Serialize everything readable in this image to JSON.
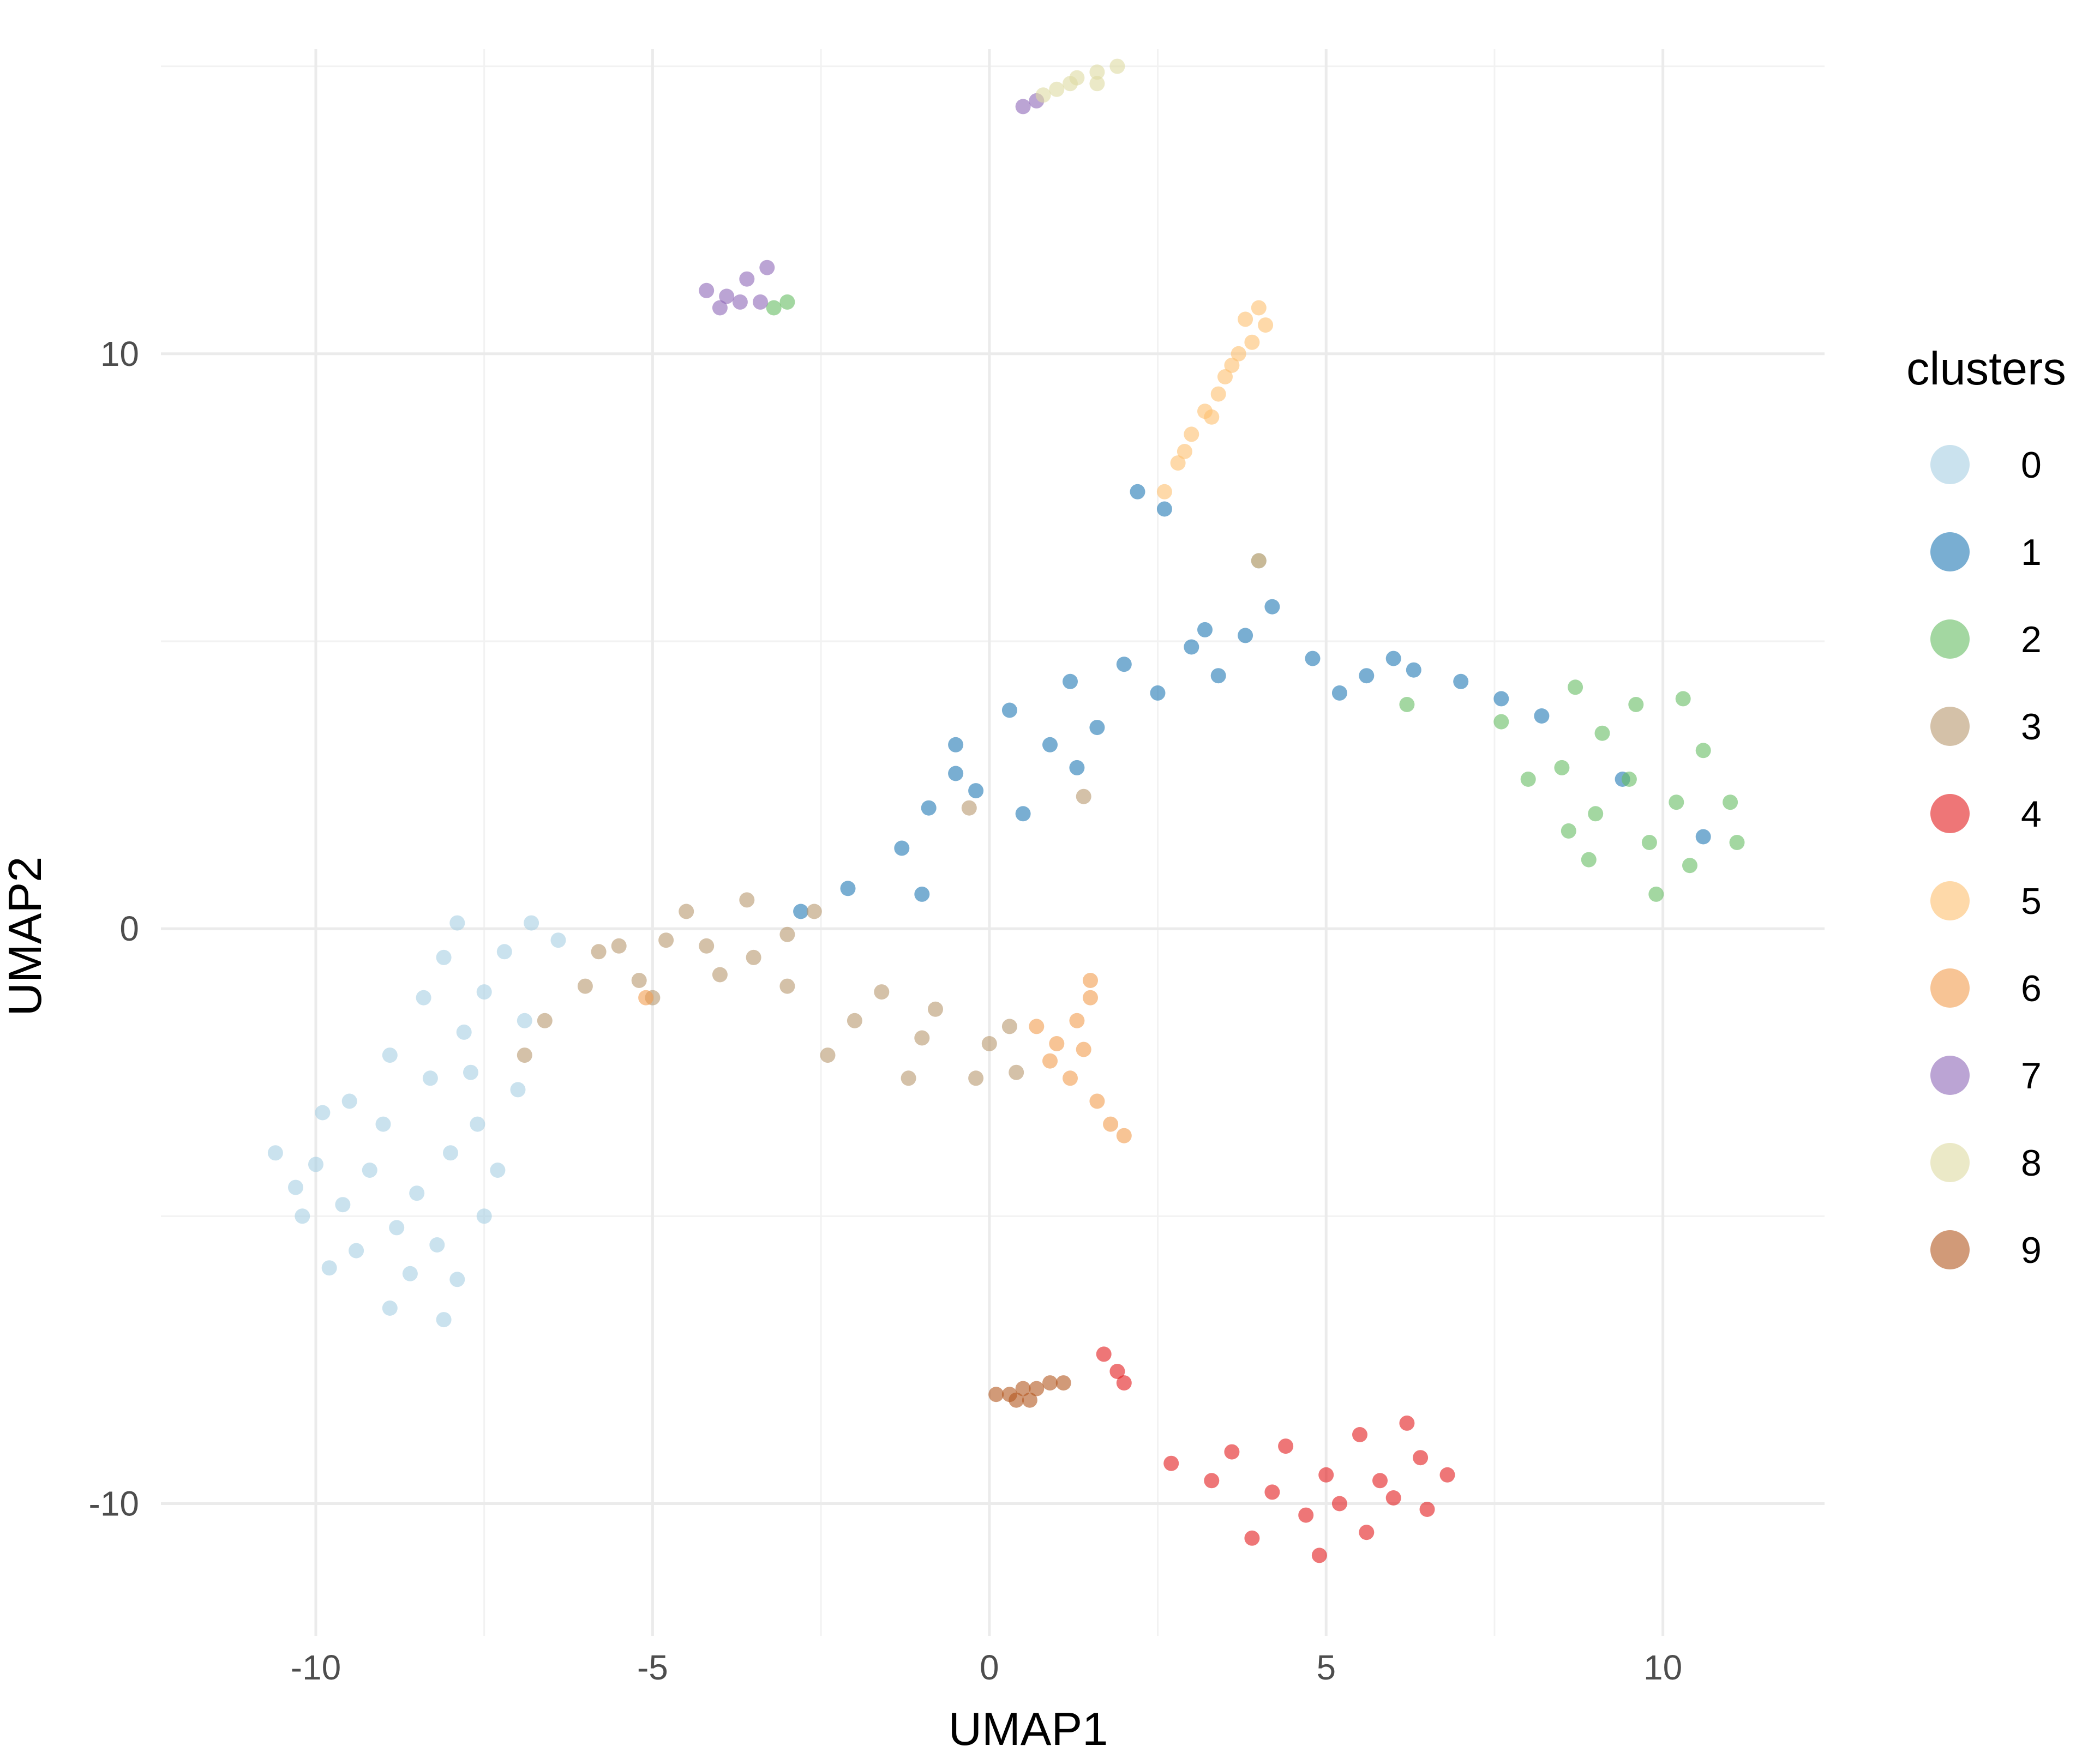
{
  "chart_data": {
    "type": "scatter",
    "title": "",
    "xlabel": "UMAP1",
    "ylabel": "UMAP2",
    "xlim": [
      -12.3,
      12.4
    ],
    "ylim": [
      -12.3,
      15.3
    ],
    "x_ticks": [
      -10,
      -5,
      0,
      5,
      10
    ],
    "x_tick_labels": [
      "-10",
      "-5",
      "0",
      "5",
      "10"
    ],
    "y_ticks": [
      -10,
      0,
      10
    ],
    "y_tick_labels": [
      "-10",
      "0",
      "10"
    ],
    "grid": true,
    "point_opacity": 0.6,
    "legend": {
      "title": "clusters",
      "position": "right",
      "entries": [
        "0",
        "1",
        "2",
        "3",
        "4",
        "5",
        "6",
        "7",
        "8",
        "9"
      ]
    },
    "series": [
      {
        "label": "0",
        "color": "#A6CEE3",
        "points": [
          [
            -9.2,
            -4.2
          ],
          [
            -8.5,
            -4.6
          ],
          [
            -8.0,
            -3.9
          ],
          [
            -9.0,
            -3.4
          ],
          [
            -8.8,
            -5.2
          ],
          [
            -9.6,
            -4.8
          ],
          [
            -8.2,
            -5.5
          ],
          [
            -8.6,
            -6.0
          ],
          [
            -7.6,
            -3.4
          ],
          [
            -8.3,
            -2.6
          ],
          [
            -7.8,
            -1.8
          ],
          [
            -7.5,
            -1.1
          ],
          [
            -7.2,
            -0.4
          ],
          [
            -6.8,
            0.1
          ],
          [
            -6.4,
            -0.2
          ],
          [
            -7.7,
            -2.5
          ],
          [
            -9.4,
            -5.6
          ],
          [
            -10.0,
            -4.1
          ],
          [
            -10.6,
            -3.9
          ],
          [
            -10.2,
            -5.0
          ],
          [
            -9.8,
            -5.9
          ],
          [
            -8.9,
            -6.6
          ],
          [
            -8.1,
            -6.8
          ],
          [
            -7.9,
            -6.1
          ],
          [
            -7.5,
            -5.0
          ],
          [
            -7.3,
            -4.2
          ],
          [
            -7.0,
            -2.8
          ],
          [
            -6.9,
            -1.6
          ],
          [
            -8.9,
            -2.2
          ],
          [
            -9.5,
            -3.0
          ],
          [
            -8.4,
            -1.2
          ],
          [
            -8.1,
            -0.5
          ],
          [
            -7.9,
            0.1
          ],
          [
            -9.9,
            -3.2
          ],
          [
            -10.3,
            -4.5
          ]
        ]
      },
      {
        "label": "1",
        "color": "#1F78B4",
        "points": [
          [
            -0.5,
            3.2
          ],
          [
            0.3,
            3.8
          ],
          [
            1.2,
            4.3
          ],
          [
            2.0,
            4.6
          ],
          [
            3.0,
            4.9
          ],
          [
            3.8,
            5.1
          ],
          [
            4.2,
            5.6
          ],
          [
            4.8,
            4.7
          ],
          [
            5.6,
            4.4
          ],
          [
            6.3,
            4.5
          ],
          [
            7.0,
            4.3
          ],
          [
            7.6,
            4.0
          ],
          [
            -0.9,
            2.1
          ],
          [
            -1.3,
            1.4
          ],
          [
            -0.2,
            2.4
          ],
          [
            0.5,
            2.0
          ],
          [
            1.3,
            2.8
          ],
          [
            1.6,
            3.5
          ],
          [
            2.5,
            4.1
          ],
          [
            3.4,
            4.4
          ],
          [
            4.0,
            6.4
          ],
          [
            2.6,
            7.3
          ],
          [
            2.2,
            7.6
          ],
          [
            -0.5,
            2.7
          ],
          [
            0.9,
            3.2
          ],
          [
            3.2,
            5.2
          ],
          [
            5.2,
            4.1
          ],
          [
            6.0,
            4.7
          ],
          [
            -1.0,
            0.6
          ],
          [
            -2.1,
            0.7
          ],
          [
            -2.8,
            0.3
          ],
          [
            8.2,
            3.7
          ],
          [
            9.4,
            2.6
          ],
          [
            10.6,
            1.6
          ]
        ]
      },
      {
        "label": "2",
        "color": "#66BD63",
        "points": [
          [
            9.5,
            2.6
          ],
          [
            9.0,
            2.0
          ],
          [
            10.2,
            2.2
          ],
          [
            10.6,
            3.1
          ],
          [
            9.1,
            3.4
          ],
          [
            8.5,
            2.8
          ],
          [
            9.8,
            1.5
          ],
          [
            10.4,
            1.1
          ],
          [
            8.9,
            1.2
          ],
          [
            11.0,
            2.2
          ],
          [
            9.6,
            3.9
          ],
          [
            8.7,
            4.2
          ],
          [
            10.3,
            4.0
          ],
          [
            11.1,
            1.5
          ],
          [
            9.9,
            0.6
          ],
          [
            8.6,
            1.7
          ],
          [
            8.0,
            2.6
          ],
          [
            7.6,
            3.6
          ],
          [
            6.2,
            3.9
          ],
          [
            -3.2,
            10.8
          ],
          [
            -3.0,
            10.9
          ]
        ]
      },
      {
        "label": "3",
        "color": "#B8986E",
        "points": [
          [
            -6.0,
            -1.0
          ],
          [
            -5.0,
            -1.2
          ],
          [
            -4.0,
            -0.8
          ],
          [
            -3.0,
            -1.0
          ],
          [
            -2.0,
            -1.6
          ],
          [
            -1.0,
            -1.9
          ],
          [
            0.0,
            -2.0
          ],
          [
            -3.5,
            -0.5
          ],
          [
            -4.8,
            -0.2
          ],
          [
            -5.8,
            -0.4
          ],
          [
            -6.6,
            -1.6
          ],
          [
            -6.9,
            -2.2
          ],
          [
            -2.4,
            -2.2
          ],
          [
            -1.2,
            -2.6
          ],
          [
            -0.2,
            -2.6
          ],
          [
            0.4,
            -2.5
          ],
          [
            -3.0,
            -0.1
          ],
          [
            -4.2,
            -0.3
          ],
          [
            -5.2,
            -0.9
          ],
          [
            -1.6,
            -1.1
          ],
          [
            -0.8,
            -1.4
          ],
          [
            -2.6,
            0.3
          ],
          [
            -3.6,
            0.5
          ],
          [
            -4.5,
            0.3
          ],
          [
            0.3,
            -1.7
          ],
          [
            -0.3,
            2.1
          ],
          [
            1.4,
            2.3
          ],
          [
            -5.5,
            -0.3
          ]
        ]
      },
      {
        "label": "4",
        "color": "#E31A1C",
        "points": [
          [
            4.2,
            -9.8
          ],
          [
            5.0,
            -9.5
          ],
          [
            5.8,
            -9.6
          ],
          [
            6.4,
            -9.2
          ],
          [
            4.7,
            -10.2
          ],
          [
            5.6,
            -10.5
          ],
          [
            3.3,
            -9.6
          ],
          [
            2.7,
            -9.3
          ],
          [
            4.9,
            -10.9
          ],
          [
            3.9,
            -10.6
          ],
          [
            6.5,
            -10.1
          ],
          [
            6.8,
            -9.5
          ],
          [
            5.5,
            -8.8
          ],
          [
            6.2,
            -8.6
          ],
          [
            4.4,
            -9.0
          ],
          [
            3.6,
            -9.1
          ],
          [
            5.2,
            -10.0
          ],
          [
            6.0,
            -9.9
          ],
          [
            1.7,
            -7.4
          ],
          [
            1.9,
            -7.7
          ],
          [
            2.0,
            -7.9
          ]
        ]
      },
      {
        "label": "5",
        "color": "#FDBF6F",
        "points": [
          [
            3.0,
            8.6
          ],
          [
            3.4,
            9.3
          ],
          [
            3.7,
            10.0
          ],
          [
            4.0,
            10.8
          ],
          [
            3.9,
            10.2
          ],
          [
            2.8,
            8.1
          ],
          [
            2.6,
            7.6
          ],
          [
            3.2,
            9.0
          ],
          [
            3.6,
            9.8
          ],
          [
            3.8,
            10.6
          ],
          [
            2.9,
            8.3
          ],
          [
            3.5,
            9.6
          ],
          [
            4.0,
            6.4
          ],
          [
            4.1,
            10.5
          ],
          [
            3.3,
            8.9
          ]
        ]
      },
      {
        "label": "6",
        "color": "#F29D4F",
        "points": [
          [
            1.0,
            -2.0
          ],
          [
            1.4,
            -2.1
          ],
          [
            1.5,
            -1.2
          ],
          [
            0.7,
            -1.7
          ],
          [
            1.2,
            -2.6
          ],
          [
            1.6,
            -3.0
          ],
          [
            1.8,
            -3.4
          ],
          [
            2.0,
            -3.6
          ],
          [
            1.3,
            -1.6
          ],
          [
            0.9,
            -2.3
          ],
          [
            1.5,
            -0.9
          ],
          [
            -5.1,
            -1.2
          ]
        ]
      },
      {
        "label": "7",
        "color": "#8E67B8",
        "points": [
          [
            -4.2,
            11.1
          ],
          [
            -3.9,
            11.0
          ],
          [
            -3.6,
            11.3
          ],
          [
            -3.3,
            11.5
          ],
          [
            -4.0,
            10.8
          ],
          [
            -3.7,
            10.9
          ],
          [
            -3.4,
            10.9
          ],
          [
            0.7,
            14.4
          ],
          [
            0.5,
            14.3
          ]
        ]
      },
      {
        "label": "8",
        "color": "#DEDBA1",
        "points": [
          [
            1.0,
            14.6
          ],
          [
            1.3,
            14.8
          ],
          [
            1.6,
            14.9
          ],
          [
            1.9,
            15.0
          ],
          [
            1.2,
            14.7
          ],
          [
            1.6,
            14.7
          ],
          [
            0.8,
            14.5
          ]
        ]
      },
      {
        "label": "9",
        "color": "#B2561E",
        "points": [
          [
            0.1,
            -8.1
          ],
          [
            0.3,
            -8.1
          ],
          [
            0.5,
            -8.0
          ],
          [
            0.7,
            -8.0
          ],
          [
            0.9,
            -7.9
          ],
          [
            1.1,
            -7.9
          ],
          [
            0.4,
            -8.2
          ],
          [
            0.6,
            -8.2
          ]
        ]
      }
    ]
  }
}
